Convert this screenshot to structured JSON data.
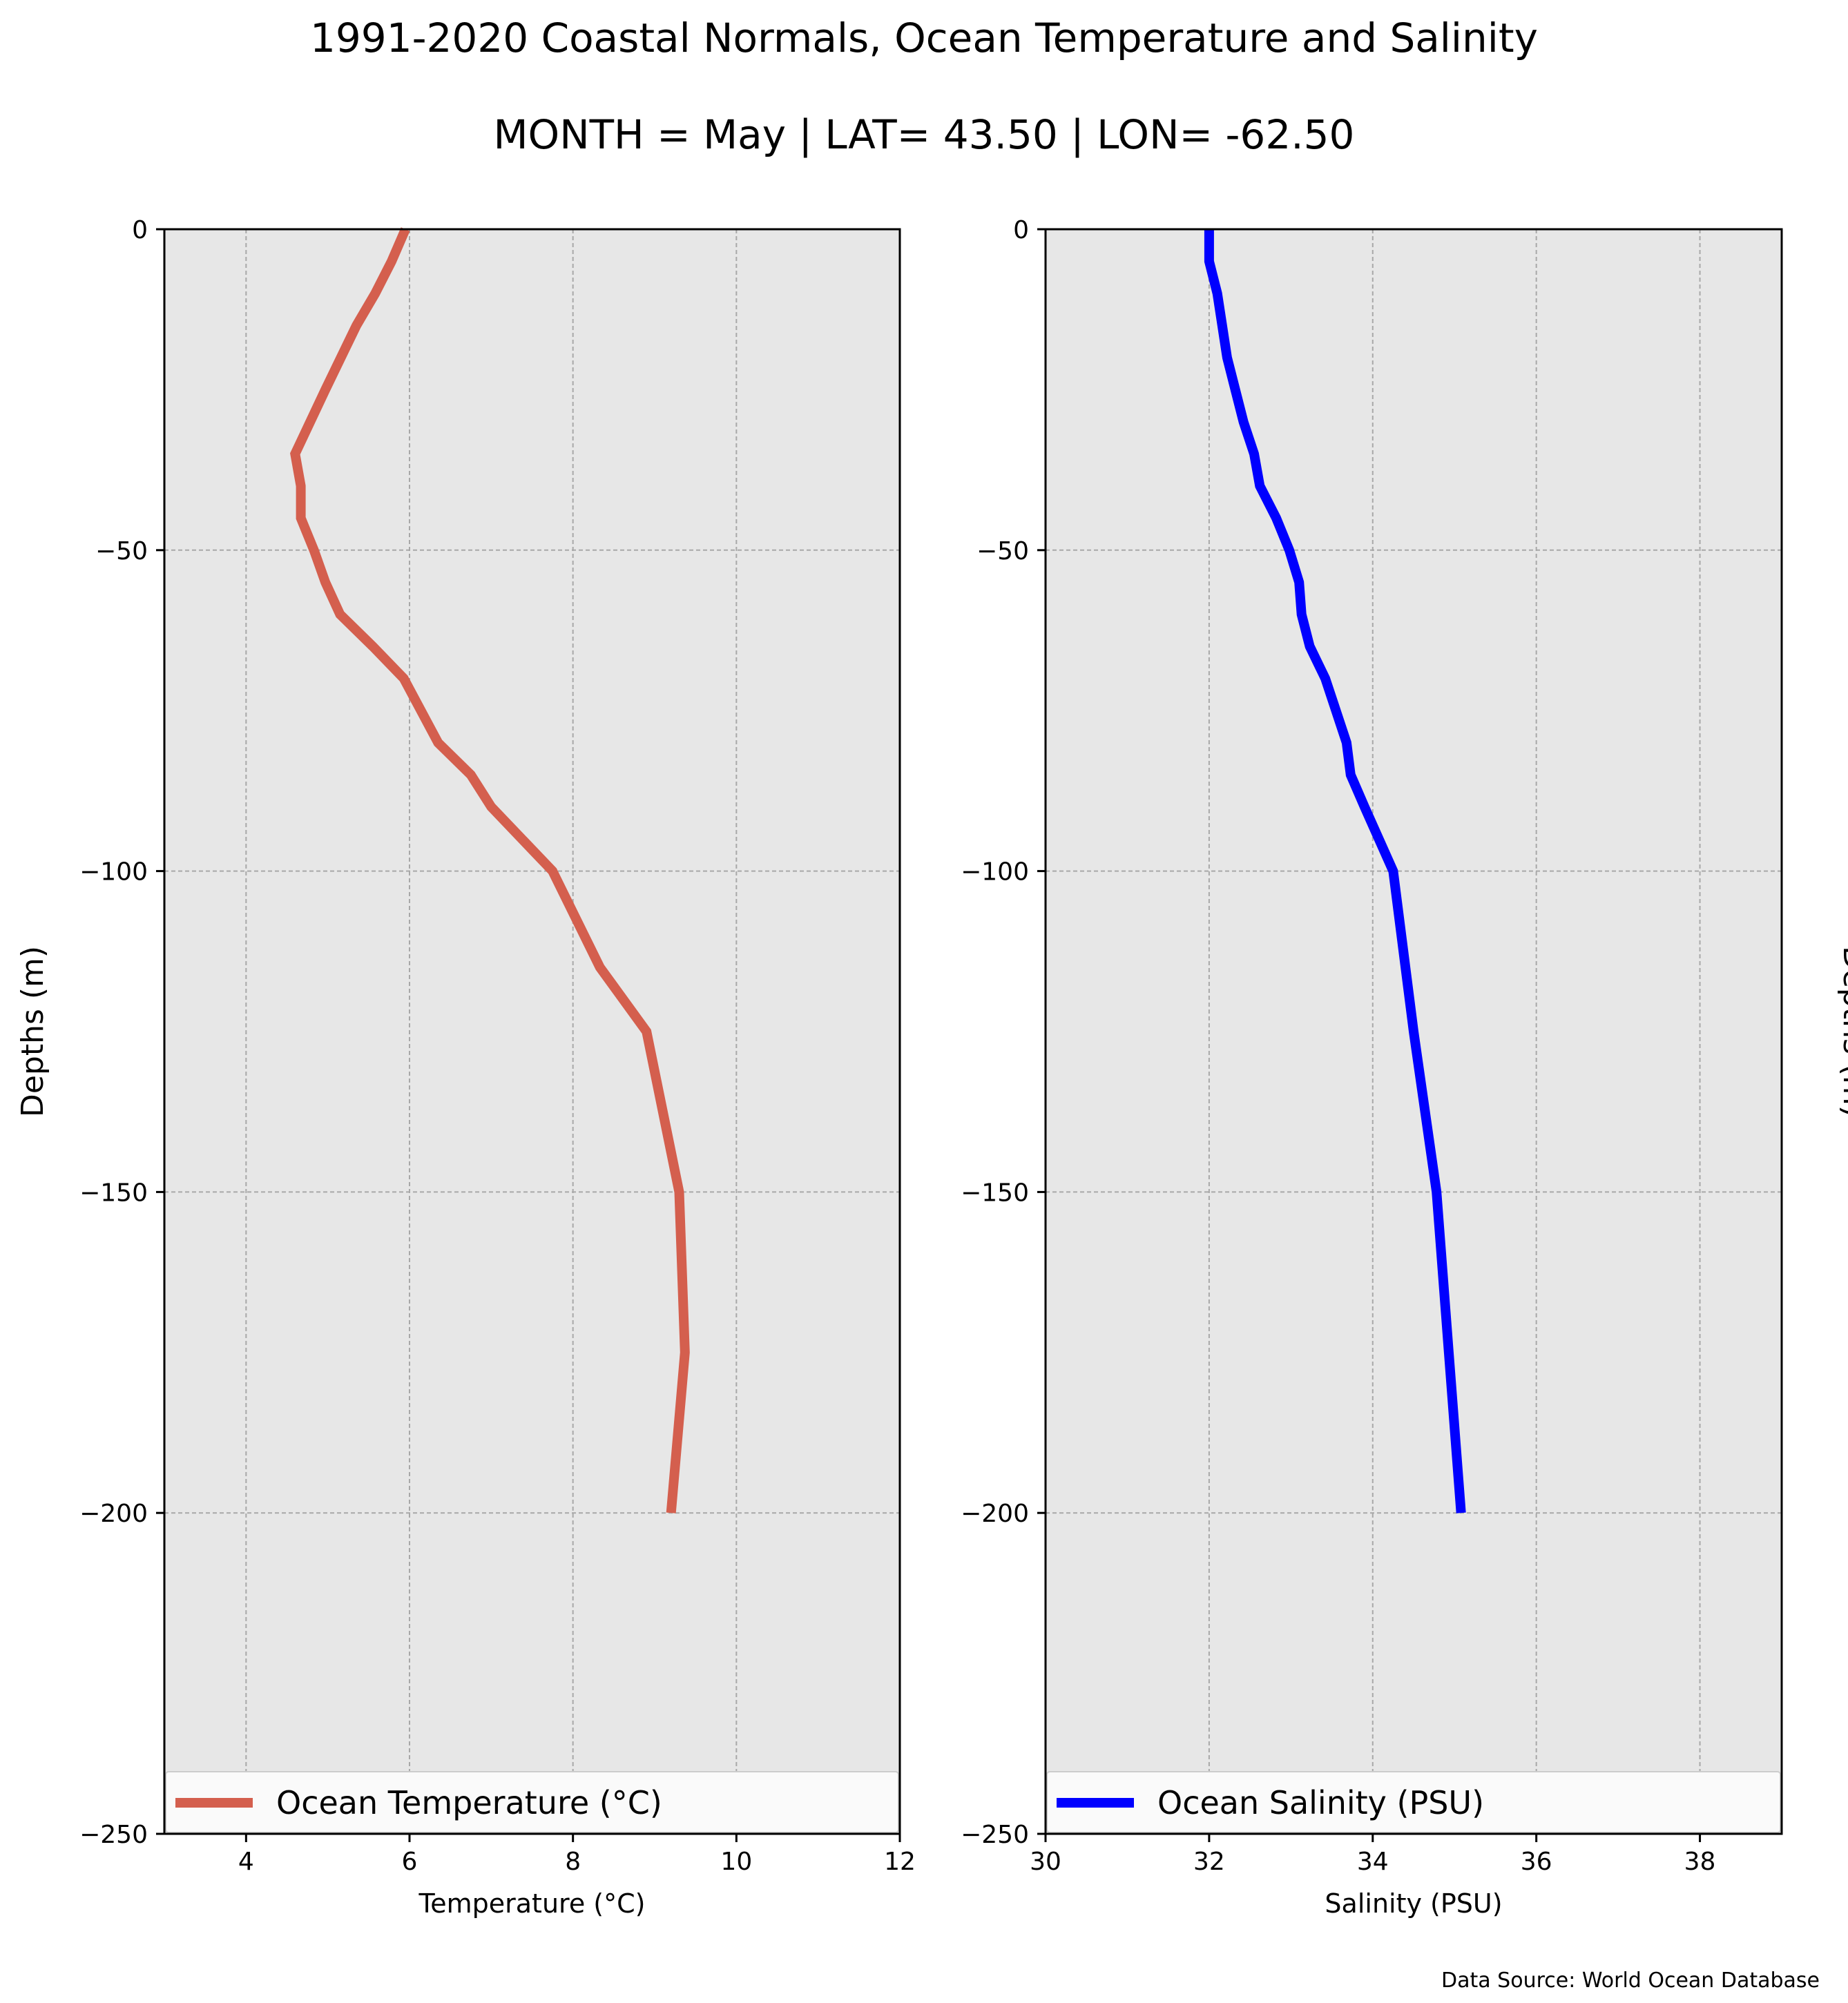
{
  "title": "1991-2020 Coastal Normals, Ocean Temperature and Salinity",
  "subtitle": "MONTH = May | LAT= 43.50 | LON= -62.50",
  "source": "Data Source: World Ocean Database",
  "colors": {
    "panel_bg": "#e7e7e7",
    "grid": "#a8a8a8",
    "temperature": "#d45f4e",
    "salinity": "#0000ff"
  },
  "chart_data": [
    {
      "type": "line",
      "xlabel": "Temperature (°C)",
      "ylabel": "Depths (m)",
      "ylabel_side": "left",
      "xlim": [
        3,
        12
      ],
      "ylim": [
        -250,
        0
      ],
      "xticks": [
        4,
        6,
        8,
        10,
        12
      ],
      "xtick_labels": [
        "4",
        "6",
        "8",
        "10",
        "12"
      ],
      "yticks": [
        0,
        -50,
        -100,
        -150,
        -200,
        -250
      ],
      "ytick_labels": [
        "0",
        "−50",
        "−100",
        "−150",
        "−200",
        "−250"
      ],
      "grid": true,
      "legend_position": "bottom",
      "series": [
        {
          "name": "Ocean Temperature (°C)",
          "color": "#d45f4e",
          "x": [
            5.95,
            5.78,
            5.58,
            5.35,
            4.97,
            4.6,
            4.67,
            4.67,
            4.83,
            4.97,
            5.15,
            5.55,
            5.93,
            6.35,
            6.75,
            7.0,
            7.75,
            8.33,
            8.9,
            9.3,
            9.37,
            9.2
          ],
          "y": [
            0,
            -5,
            -10,
            -15,
            -25,
            -35,
            -40,
            -45,
            -50,
            -55,
            -60,
            -65,
            -70,
            -80,
            -85,
            -90,
            -100,
            -115,
            -125,
            -150,
            -175,
            -200
          ]
        }
      ]
    },
    {
      "type": "line",
      "xlabel": "Salinity (PSU)",
      "ylabel": "Depths (m)",
      "ylabel_side": "right",
      "xlim": [
        30,
        39
      ],
      "ylim": [
        -250,
        0
      ],
      "xticks": [
        30,
        32,
        34,
        36,
        38
      ],
      "xtick_labels": [
        "30",
        "32",
        "34",
        "36",
        "38"
      ],
      "yticks": [
        0,
        -50,
        -100,
        -150,
        -200,
        -250
      ],
      "ytick_labels": [
        "0",
        "−50",
        "−100",
        "−150",
        "−200",
        "−250"
      ],
      "grid": true,
      "legend_position": "bottom",
      "series": [
        {
          "name": "Ocean Salinity (PSU)",
          "color": "#0000ff",
          "x": [
            32.0,
            32.0,
            32.1,
            32.22,
            32.42,
            32.55,
            32.62,
            32.82,
            32.98,
            33.1,
            33.13,
            33.23,
            33.42,
            33.55,
            33.68,
            33.73,
            33.9,
            34.25,
            34.5,
            34.78,
            34.93,
            35.08
          ],
          "y": [
            0,
            -5,
            -10,
            -20,
            -30,
            -35,
            -40,
            -45,
            -50,
            -55,
            -60,
            -65,
            -70,
            -75,
            -80,
            -85,
            -90,
            -100,
            -125,
            -150,
            -175,
            -200
          ]
        }
      ]
    }
  ]
}
